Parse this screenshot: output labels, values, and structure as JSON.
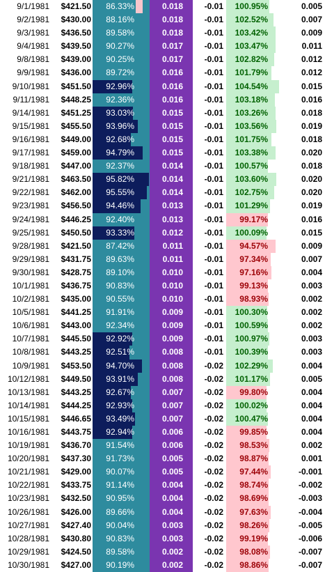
{
  "colors": {
    "pct_cell": "#2e8b9e",
    "pct_bar": "#0d1d5c",
    "pct_tail": "#f8c6cc",
    "value_cell": "#7a35b0",
    "ratio_positive_fill": "#c6efce",
    "ratio_positive_text": "#006100",
    "ratio_negative_fill": "#ffc7ce",
    "ratio_negative_text": "#9c0006"
  },
  "rows": [
    {
      "date": "9/1/1981",
      "price": "$421.50",
      "pct": "86.33%",
      "val": "0.018",
      "neg": "-0.01",
      "ratio": "100.95%",
      "last": "0.005"
    },
    {
      "date": "9/2/1981",
      "price": "$430.00",
      "pct": "88.16%",
      "val": "0.018",
      "neg": "-0.01",
      "ratio": "102.52%",
      "last": "0.007"
    },
    {
      "date": "9/3/1981",
      "price": "$436.50",
      "pct": "89.58%",
      "val": "0.018",
      "neg": "-0.01",
      "ratio": "103.42%",
      "last": "0.009"
    },
    {
      "date": "9/4/1981",
      "price": "$439.50",
      "pct": "90.27%",
      "val": "0.017",
      "neg": "-0.01",
      "ratio": "103.47%",
      "last": "0.011"
    },
    {
      "date": "9/8/1981",
      "price": "$439.00",
      "pct": "90.25%",
      "val": "0.017",
      "neg": "-0.01",
      "ratio": "102.82%",
      "last": "0.012"
    },
    {
      "date": "9/9/1981",
      "price": "$436.00",
      "pct": "89.72%",
      "val": "0.016",
      "neg": "-0.01",
      "ratio": "101.79%",
      "last": "0.012"
    },
    {
      "date": "9/10/1981",
      "price": "$451.50",
      "pct": "92.96%",
      "val": "0.016",
      "neg": "-0.01",
      "ratio": "104.54%",
      "last": "0.015"
    },
    {
      "date": "9/11/1981",
      "price": "$448.25",
      "pct": "92.36%",
      "val": "0.016",
      "neg": "-0.01",
      "ratio": "103.18%",
      "last": "0.016"
    },
    {
      "date": "9/14/1981",
      "price": "$451.25",
      "pct": "93.03%",
      "val": "0.015",
      "neg": "-0.01",
      "ratio": "103.26%",
      "last": "0.018"
    },
    {
      "date": "9/15/1981",
      "price": "$455.50",
      "pct": "93.96%",
      "val": "0.015",
      "neg": "-0.01",
      "ratio": "103.56%",
      "last": "0.019"
    },
    {
      "date": "9/16/1981",
      "price": "$449.00",
      "pct": "92.68%",
      "val": "0.015",
      "neg": "-0.01",
      "ratio": "101.75%",
      "last": "0.018"
    },
    {
      "date": "9/17/1981",
      "price": "$459.00",
      "pct": "94.79%",
      "val": "0.015",
      "neg": "-0.01",
      "ratio": "103.38%",
      "last": "0.020"
    },
    {
      "date": "9/18/1981",
      "price": "$447.00",
      "pct": "92.37%",
      "val": "0.014",
      "neg": "-0.01",
      "ratio": "100.57%",
      "last": "0.018"
    },
    {
      "date": "9/21/1981",
      "price": "$463.50",
      "pct": "95.82%",
      "val": "0.014",
      "neg": "-0.01",
      "ratio": "103.60%",
      "last": "0.020"
    },
    {
      "date": "9/22/1981",
      "price": "$462.00",
      "pct": "95.55%",
      "val": "0.014",
      "neg": "-0.01",
      "ratio": "102.75%",
      "last": "0.020"
    },
    {
      "date": "9/23/1981",
      "price": "$456.50",
      "pct": "94.46%",
      "val": "0.013",
      "neg": "-0.01",
      "ratio": "101.29%",
      "last": "0.019"
    },
    {
      "date": "9/24/1981",
      "price": "$446.25",
      "pct": "92.40%",
      "val": "0.013",
      "neg": "-0.01",
      "ratio": "99.17%",
      "last": "0.016"
    },
    {
      "date": "9/25/1981",
      "price": "$450.50",
      "pct": "93.33%",
      "val": "0.012",
      "neg": "-0.01",
      "ratio": "100.09%",
      "last": "0.015"
    },
    {
      "date": "9/28/1981",
      "price": "$421.50",
      "pct": "87.42%",
      "val": "0.011",
      "neg": "-0.01",
      "ratio": "94.57%",
      "last": "0.009"
    },
    {
      "date": "9/29/1981",
      "price": "$431.75",
      "pct": "89.63%",
      "val": "0.011",
      "neg": "-0.01",
      "ratio": "97.34%",
      "last": "0.007"
    },
    {
      "date": "9/30/1981",
      "price": "$428.75",
      "pct": "89.10%",
      "val": "0.010",
      "neg": "-0.01",
      "ratio": "97.16%",
      "last": "0.004"
    },
    {
      "date": "10/1/1981",
      "price": "$436.75",
      "pct": "90.83%",
      "val": "0.010",
      "neg": "-0.01",
      "ratio": "99.13%",
      "last": "0.003"
    },
    {
      "date": "10/2/1981",
      "price": "$435.00",
      "pct": "90.55%",
      "val": "0.010",
      "neg": "-0.01",
      "ratio": "98.93%",
      "last": "0.002"
    },
    {
      "date": "10/5/1981",
      "price": "$441.25",
      "pct": "91.91%",
      "val": "0.009",
      "neg": "-0.01",
      "ratio": "100.30%",
      "last": "0.002"
    },
    {
      "date": "10/6/1981",
      "price": "$443.00",
      "pct": "92.34%",
      "val": "0.009",
      "neg": "-0.01",
      "ratio": "100.59%",
      "last": "0.002"
    },
    {
      "date": "10/7/1981",
      "price": "$445.50",
      "pct": "92.92%",
      "val": "0.009",
      "neg": "-0.01",
      "ratio": "100.97%",
      "last": "0.003"
    },
    {
      "date": "10/8/1981",
      "price": "$443.25",
      "pct": "92.51%",
      "val": "0.008",
      "neg": "-0.01",
      "ratio": "100.39%",
      "last": "0.003"
    },
    {
      "date": "10/9/1981",
      "price": "$453.50",
      "pct": "94.70%",
      "val": "0.008",
      "neg": "-0.02",
      "ratio": "102.29%",
      "last": "0.004"
    },
    {
      "date": "10/12/1981",
      "price": "$449.50",
      "pct": "93.91%",
      "val": "0.008",
      "neg": "-0.02",
      "ratio": "101.17%",
      "last": "0.005"
    },
    {
      "date": "10/13/1981",
      "price": "$443.25",
      "pct": "92.67%",
      "val": "0.007",
      "neg": "-0.02",
      "ratio": "99.80%",
      "last": "0.004"
    },
    {
      "date": "10/14/1981",
      "price": "$444.25",
      "pct": "92.93%",
      "val": "0.007",
      "neg": "-0.02",
      "ratio": "100.02%",
      "last": "0.004"
    },
    {
      "date": "10/15/1981",
      "price": "$446.65",
      "pct": "93.49%",
      "val": "0.007",
      "neg": "-0.02",
      "ratio": "100.47%",
      "last": "0.004"
    },
    {
      "date": "10/16/1981",
      "price": "$443.75",
      "pct": "92.94%",
      "val": "0.006",
      "neg": "-0.02",
      "ratio": "99.85%",
      "last": "0.004"
    },
    {
      "date": "10/19/1981",
      "price": "$436.70",
      "pct": "91.54%",
      "val": "0.006",
      "neg": "-0.02",
      "ratio": "98.53%",
      "last": "0.002"
    },
    {
      "date": "10/20/1981",
      "price": "$437.30",
      "pct": "91.73%",
      "val": "0.005",
      "neg": "-0.02",
      "ratio": "98.87%",
      "last": "0.001"
    },
    {
      "date": "10/21/1981",
      "price": "$429.00",
      "pct": "90.07%",
      "val": "0.005",
      "neg": "-0.02",
      "ratio": "97.44%",
      "last": "-0.001"
    },
    {
      "date": "10/22/1981",
      "price": "$433.75",
      "pct": "91.14%",
      "val": "0.004",
      "neg": "-0.02",
      "ratio": "98.74%",
      "last": "-0.002"
    },
    {
      "date": "10/23/1981",
      "price": "$432.50",
      "pct": "90.95%",
      "val": "0.004",
      "neg": "-0.02",
      "ratio": "98.69%",
      "last": "-0.003"
    },
    {
      "date": "10/26/1981",
      "price": "$426.00",
      "pct": "89.66%",
      "val": "0.004",
      "neg": "-0.02",
      "ratio": "97.63%",
      "last": "-0.004"
    },
    {
      "date": "10/27/1981",
      "price": "$427.40",
      "pct": "90.04%",
      "val": "0.003",
      "neg": "-0.02",
      "ratio": "98.26%",
      "last": "-0.005"
    },
    {
      "date": "10/28/1981",
      "price": "$430.80",
      "pct": "90.83%",
      "val": "0.003",
      "neg": "-0.02",
      "ratio": "99.19%",
      "last": "-0.006"
    },
    {
      "date": "10/29/1981",
      "price": "$424.50",
      "pct": "89.58%",
      "val": "0.002",
      "neg": "-0.02",
      "ratio": "98.08%",
      "last": "-0.007"
    },
    {
      "date": "10/30/1981",
      "price": "$427.00",
      "pct": "90.19%",
      "val": "0.002",
      "neg": "-0.02",
      "ratio": "98.86%",
      "last": "-0.007"
    }
  ]
}
